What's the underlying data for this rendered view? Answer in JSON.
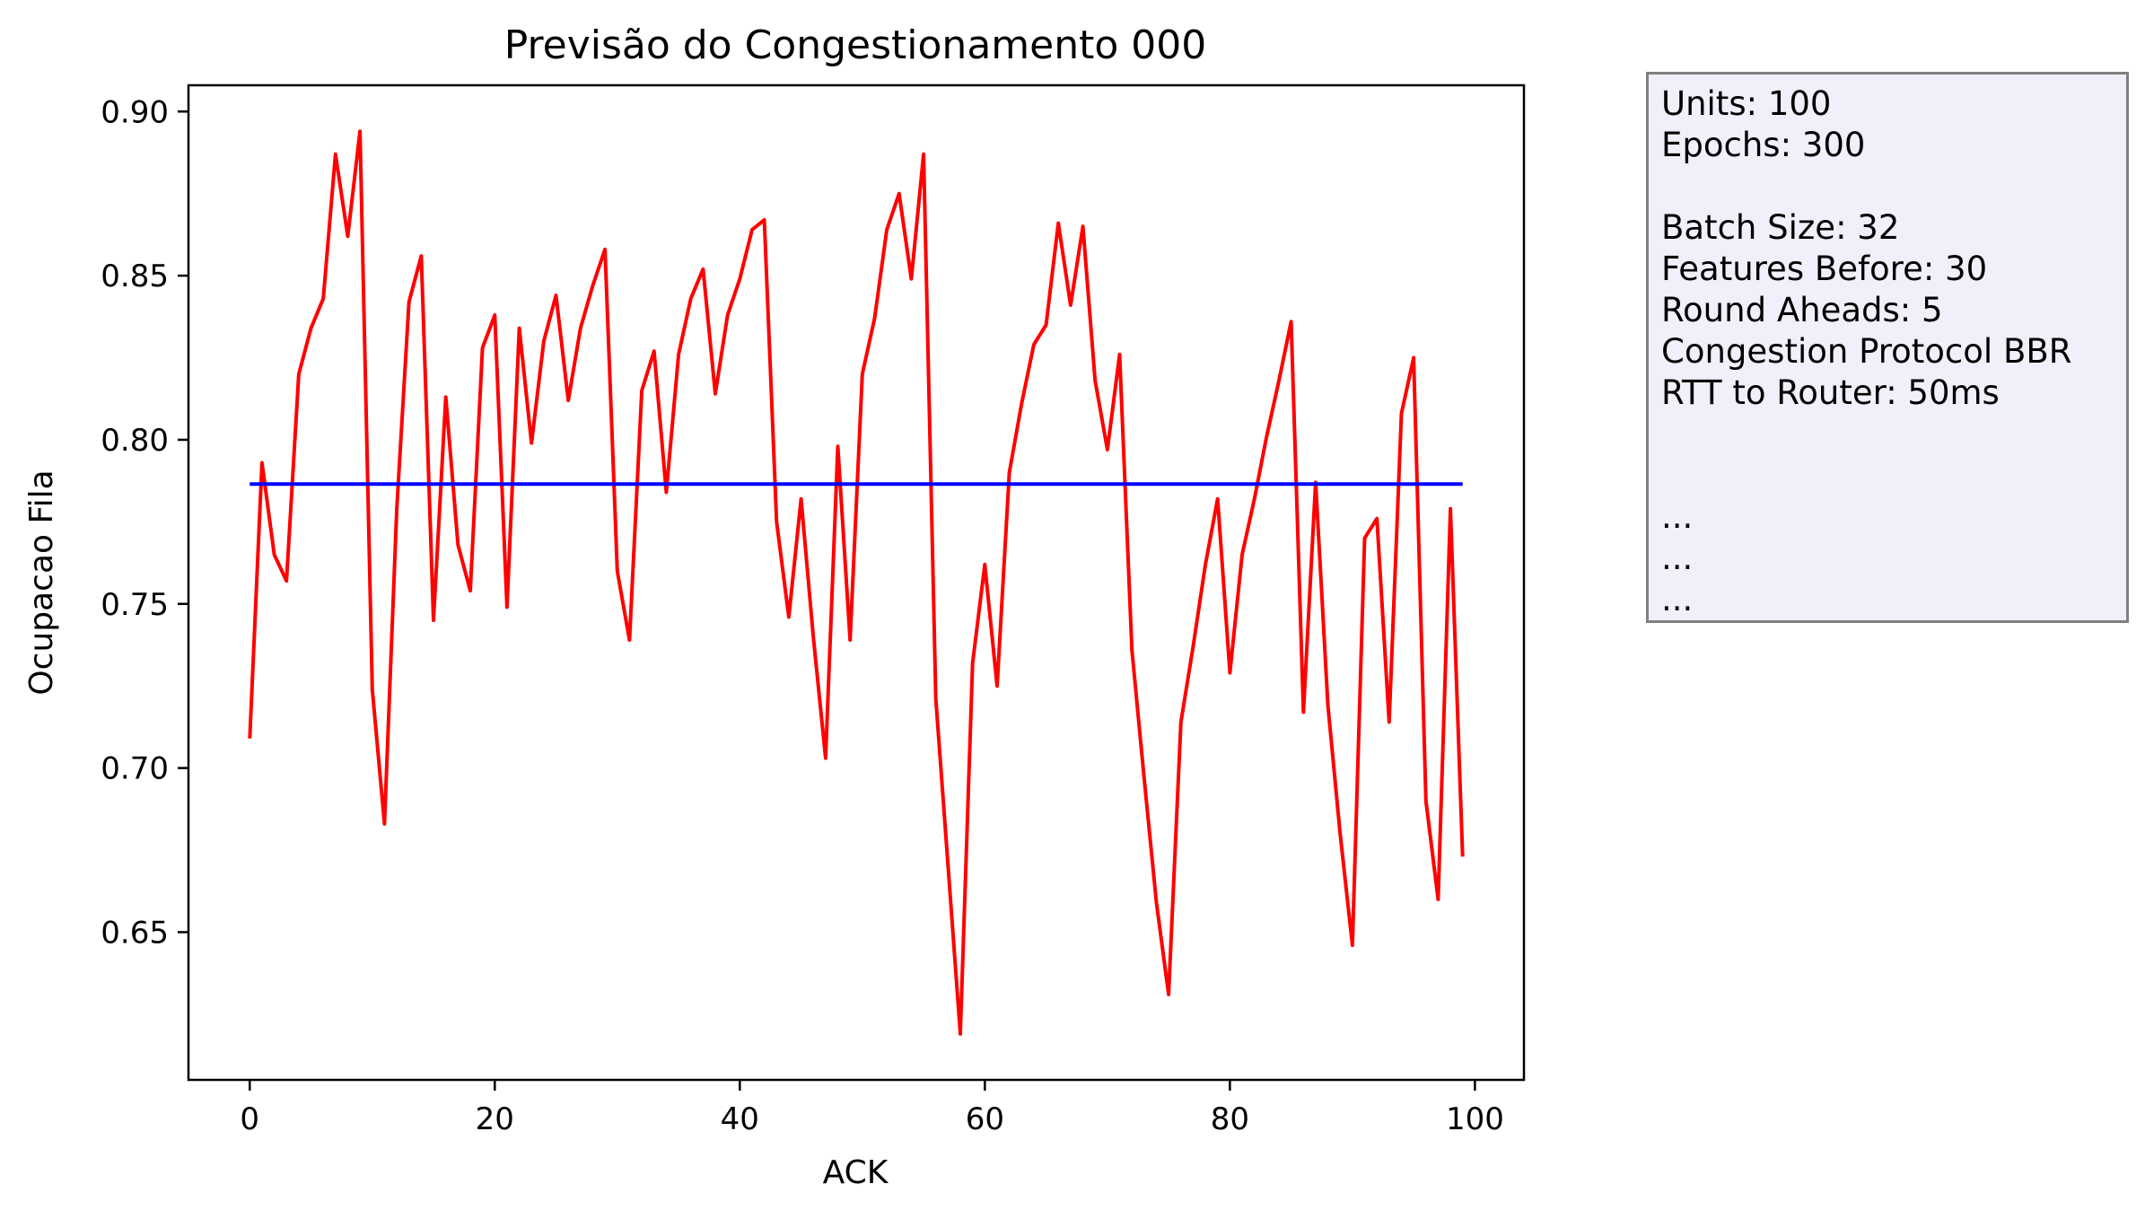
{
  "chart_data": {
    "type": "line",
    "title": "Previsão do Congestionamento 000",
    "xlabel": "ACK",
    "ylabel": "Ocupacao Fila",
    "xlim": [
      -5,
      104
    ],
    "ylim": [
      0.605,
      0.908
    ],
    "x_ticks": [
      0,
      20,
      40,
      60,
      80,
      100
    ],
    "y_ticks": [
      0.65,
      0.7,
      0.75,
      0.8,
      0.85,
      0.9
    ],
    "x_tick_labels": [
      "0",
      "20",
      "40",
      "60",
      "80",
      "100"
    ],
    "y_tick_labels": [
      "0.65",
      "0.70",
      "0.75",
      "0.80",
      "0.85",
      "0.90"
    ],
    "grid": false,
    "series": [
      {
        "color": "#ff0000",
        "x": [
          0,
          1,
          2,
          3,
          4,
          5,
          6,
          7,
          8,
          9,
          10,
          11,
          12,
          13,
          14,
          15,
          16,
          17,
          18,
          19,
          20,
          21,
          22,
          23,
          24,
          25,
          26,
          27,
          28,
          29,
          30,
          31,
          32,
          33,
          34,
          35,
          36,
          37,
          38,
          39,
          40,
          41,
          42,
          43,
          44,
          45,
          46,
          47,
          48,
          49,
          50,
          51,
          52,
          53,
          54,
          55,
          56,
          57,
          58,
          59,
          60,
          61,
          62,
          63,
          64,
          65,
          66,
          67,
          68,
          69,
          70,
          71,
          72,
          73,
          74,
          75,
          76,
          77,
          78,
          79,
          80,
          81,
          82,
          83,
          84,
          85,
          86,
          87,
          88,
          89,
          90,
          91,
          92,
          93,
          94,
          95,
          96,
          97,
          98,
          99
        ],
        "values": [
          0.709,
          0.793,
          0.765,
          0.757,
          0.82,
          0.834,
          0.843,
          0.887,
          0.862,
          0.894,
          0.724,
          0.683,
          0.779,
          0.842,
          0.856,
          0.745,
          0.813,
          0.768,
          0.754,
          0.828,
          0.838,
          0.749,
          0.834,
          0.799,
          0.83,
          0.844,
          0.812,
          0.834,
          0.847,
          0.858,
          0.76,
          0.739,
          0.815,
          0.827,
          0.784,
          0.826,
          0.843,
          0.852,
          0.814,
          0.838,
          0.849,
          0.864,
          0.867,
          0.775,
          0.746,
          0.782,
          0.74,
          0.703,
          0.798,
          0.739,
          0.82,
          0.837,
          0.864,
          0.875,
          0.849,
          0.887,
          0.721,
          0.67,
          0.619,
          0.732,
          0.762,
          0.725,
          0.79,
          0.811,
          0.829,
          0.835,
          0.866,
          0.841,
          0.865,
          0.818,
          0.797,
          0.826,
          0.736,
          0.697,
          0.659,
          0.631,
          0.714,
          0.737,
          0.762,
          0.782,
          0.729,
          0.765,
          0.782,
          0.801,
          0.818,
          0.836,
          0.717,
          0.787,
          0.719,
          0.68,
          0.646,
          0.77,
          0.776,
          0.714,
          0.808,
          0.825,
          0.69,
          0.66,
          0.779,
          0.673
        ]
      },
      {
        "color": "#0000ff",
        "x": [
          0,
          99
        ],
        "values": [
          0.7865,
          0.7865
        ]
      }
    ]
  },
  "info_box": {
    "lines": [
      "Units: 100",
      "Epochs: 300",
      "",
      "Batch Size: 32",
      "Features Before: 30",
      "Round Aheads: 5",
      "Congestion Protocol BBR",
      "RTT to Router: 50ms",
      "",
      "",
      "...",
      "...",
      "..."
    ]
  }
}
